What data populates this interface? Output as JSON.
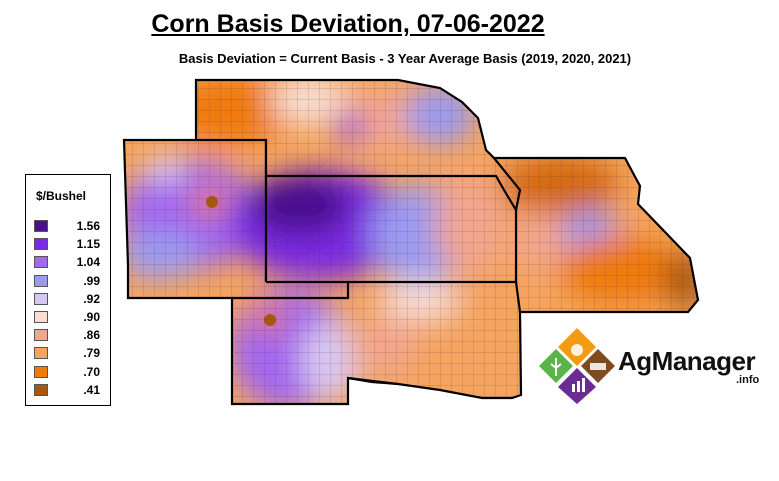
{
  "title": "Corn Basis Deviation, 07-06-2022",
  "subtitle": "Basis Deviation = Current Basis - 3 Year Average Basis (2019, 2020, 2021)",
  "legend": {
    "title": "$/Bushel",
    "items": [
      {
        "label": "1.56",
        "color": "#4a0e8f"
      },
      {
        "label": "1.15",
        "color": "#7b2be2"
      },
      {
        "label": "1.04",
        "color": "#a368ee"
      },
      {
        "label": ".99",
        "color": "#9b9af0"
      },
      {
        "label": ".92",
        "color": "#d8c7f2"
      },
      {
        "label": ".90",
        "color": "#f8ddd0"
      },
      {
        "label": ".86",
        "color": "#f3a68e"
      },
      {
        "label": ".79",
        "color": "#f5a45e"
      },
      {
        "label": ".70",
        "color": "#f07a0c"
      },
      {
        "label": ".41",
        "color": "#a8570f"
      }
    ]
  },
  "logo": {
    "brand": "AgManager",
    "suffix": ".info",
    "colors": [
      "#f39c12",
      "#7f4a1e",
      "#6a2c91",
      "#59b54a"
    ]
  }
}
